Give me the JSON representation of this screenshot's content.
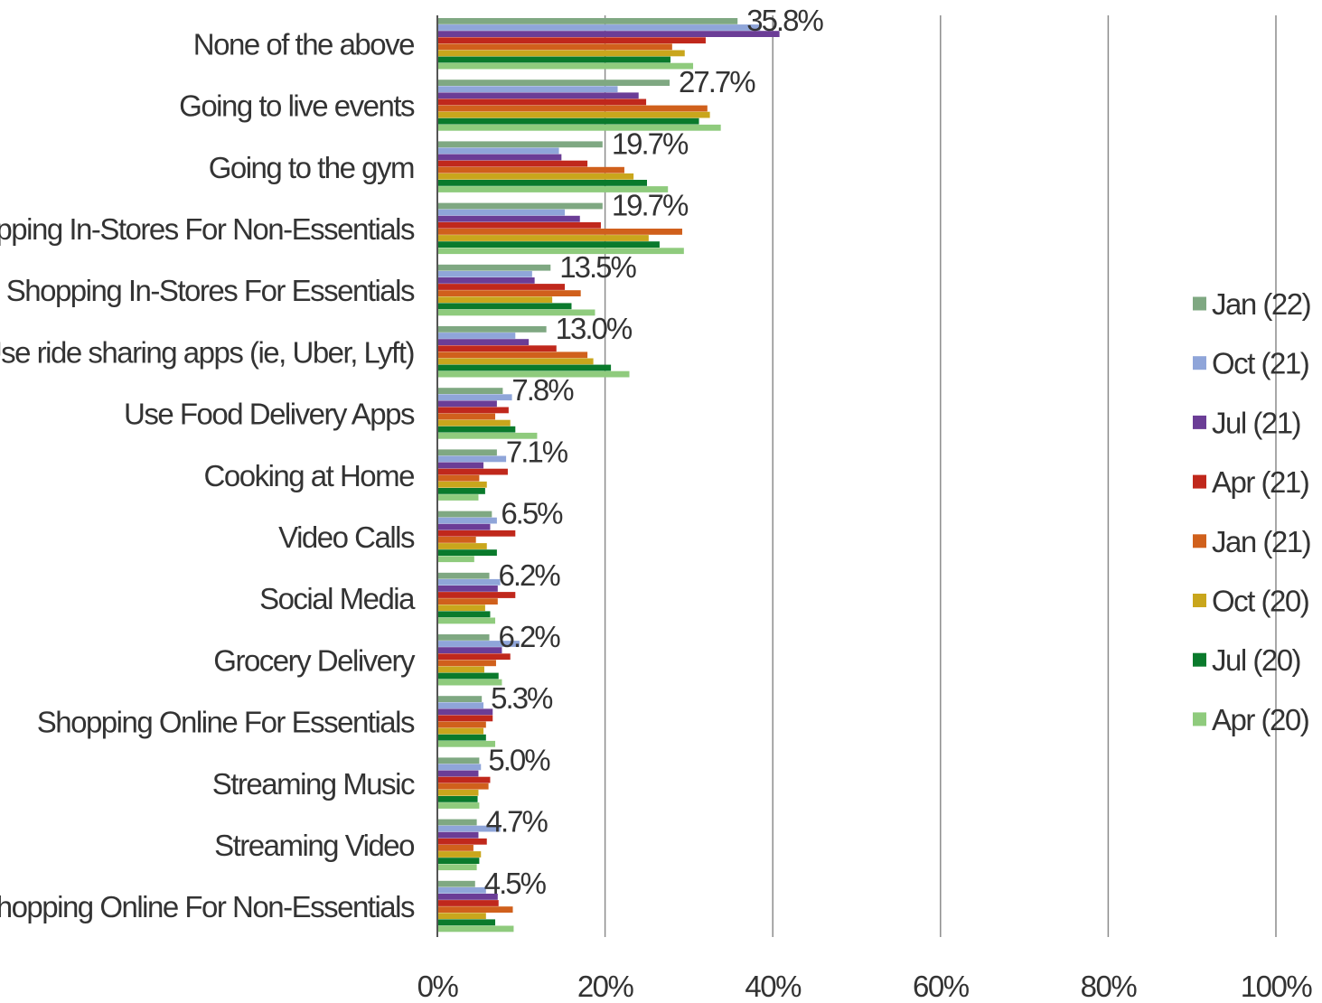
{
  "chart_data": {
    "type": "bar",
    "orientation": "horizontal",
    "title": "",
    "xlabel": "",
    "ylabel": "",
    "xlim": [
      0,
      100
    ],
    "x_ticks": [
      "0%",
      "20%",
      "40%",
      "60%",
      "80%",
      "100%"
    ],
    "x_tick_values": [
      0,
      20,
      40,
      60,
      80,
      100
    ],
    "grid": true,
    "legend_position": "right",
    "categories": [
      "None of the above",
      "Going to live events",
      "Going to the gym",
      "Shopping In-Stores For Non-Essentials",
      "Shopping In-Stores For Essentials",
      "Use ride sharing apps (ie, Uber, Lyft)",
      "Use Food Delivery Apps",
      "Cooking at Home",
      "Video Calls",
      "Social Media",
      "Grocery Delivery",
      "Shopping Online For Essentials",
      "Streaming Music",
      "Streaming Video",
      "Shopping Online For Non-Essentials"
    ],
    "data_labels": [
      "35.8%",
      "27.7%",
      "19.7%",
      "19.7%",
      "13.5%",
      "13.0%",
      "7.8%",
      "7.1%",
      "6.5%",
      "6.2%",
      "6.2%",
      "5.3%",
      "5.0%",
      "4.7%",
      "4.5%"
    ],
    "series": [
      {
        "name": "Jan (22)",
        "color": "#7fa882",
        "values": [
          35.8,
          27.7,
          19.7,
          19.7,
          13.5,
          13.0,
          7.8,
          7.1,
          6.5,
          6.2,
          6.2,
          5.3,
          5.0,
          4.7,
          4.5
        ]
      },
      {
        "name": "Oct (21)",
        "color": "#8fa5d9",
        "values": [
          38.5,
          21.5,
          14.5,
          15.2,
          11.3,
          9.3,
          8.9,
          8.2,
          7.1,
          7.5,
          9.8,
          5.5,
          5.2,
          7.5,
          5.8
        ]
      },
      {
        "name": "Jul (21)",
        "color": "#6b3d96",
        "values": [
          40.8,
          24.0,
          14.8,
          17.0,
          11.6,
          10.9,
          7.1,
          5.5,
          6.3,
          7.2,
          7.7,
          6.6,
          4.9,
          4.9,
          7.2
        ]
      },
      {
        "name": "Apr (21)",
        "color": "#c0281c",
        "values": [
          32.0,
          24.9,
          17.9,
          19.5,
          15.2,
          14.2,
          8.5,
          8.4,
          9.3,
          9.3,
          8.7,
          6.6,
          6.3,
          5.9,
          7.3
        ]
      },
      {
        "name": "Jan (21)",
        "color": "#d0601c",
        "values": [
          28.0,
          32.2,
          22.3,
          29.2,
          17.1,
          17.9,
          6.9,
          5.0,
          4.6,
          7.2,
          7.0,
          5.8,
          6.1,
          4.3,
          9.0
        ]
      },
      {
        "name": "Oct (20)",
        "color": "#c9a61c",
        "values": [
          29.5,
          32.5,
          23.4,
          25.2,
          13.7,
          18.6,
          8.7,
          5.9,
          5.9,
          5.7,
          5.6,
          5.5,
          4.9,
          5.2,
          5.8
        ]
      },
      {
        "name": "Jul (20)",
        "color": "#0a7a2c",
        "values": [
          27.8,
          31.2,
          25.0,
          26.5,
          16.0,
          20.7,
          9.3,
          5.7,
          7.1,
          6.3,
          7.3,
          5.8,
          4.8,
          5.0,
          6.9
        ]
      },
      {
        "name": "Apr (20)",
        "color": "#8fcb7d",
        "values": [
          30.5,
          33.8,
          27.5,
          29.4,
          18.8,
          22.9,
          11.9,
          4.9,
          4.4,
          6.9,
          7.7,
          6.9,
          5.0,
          4.7,
          9.1
        ]
      }
    ]
  }
}
